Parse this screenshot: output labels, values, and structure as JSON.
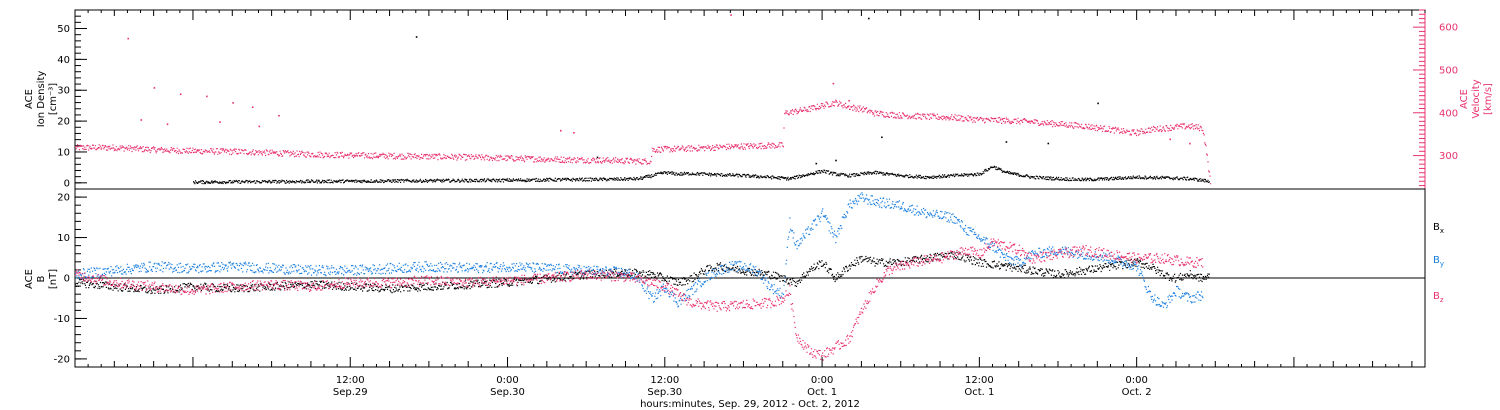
{
  "colors": {
    "black": "#000000",
    "pink": "#e8336d",
    "blue": "#1a7fe0"
  },
  "xaxis": {
    "range_hours": [
      -9,
      94
    ],
    "ticks": [
      {
        "hours": 12,
        "time": "12:00",
        "date": "Sep.29"
      },
      {
        "hours": 24,
        "time": "0:00",
        "date": "Sep.30"
      },
      {
        "hours": 36,
        "time": "12:00",
        "date": "Sep.30"
      },
      {
        "hours": 48,
        "time": "0:00",
        "date": "Oct. 1"
      },
      {
        "hours": 60,
        "time": "12:00",
        "date": "Oct. 1"
      },
      {
        "hours": 72,
        "time": "0:00",
        "date": "Oct. 2"
      }
    ],
    "label": "hours:minutes, Sep. 29, 2012 - Oct. 2, 2012"
  },
  "chart_data": [
    {
      "type": "scatter",
      "panel": "top",
      "ylabel_left": [
        "ACE",
        "Ion Density",
        "[cm⁻³]"
      ],
      "ylabel_right": [
        "ACE",
        "Velocity",
        "[km/s]"
      ],
      "ylim_left": [
        -2,
        56
      ],
      "ylim_right": [
        222,
        640
      ],
      "yticks_left": [
        0,
        10,
        20,
        30,
        40,
        50
      ],
      "yticks_right": [
        300,
        400,
        500,
        600
      ],
      "series": [
        {
          "axis": "left",
          "color": "black",
          "points": [
            [
              0,
              0.4
            ],
            [
              4,
              0.5
            ],
            [
              8,
              0.6
            ],
            [
              12,
              0.7
            ],
            [
              16,
              0.8
            ],
            [
              20,
              0.9
            ],
            [
              24,
              1.0
            ],
            [
              28,
              1.2
            ],
            [
              32,
              1.3
            ],
            [
              34,
              1.5
            ],
            [
              35,
              2.5
            ],
            [
              36,
              3.5
            ],
            [
              37,
              3.0
            ],
            [
              38,
              3.2
            ],
            [
              40,
              2.8
            ],
            [
              42,
              2.5
            ],
            [
              44,
              2.0
            ],
            [
              45.5,
              1.5
            ],
            [
              46,
              2.0
            ],
            [
              47,
              3.0
            ],
            [
              48,
              4.0
            ],
            [
              49,
              3.0
            ],
            [
              50,
              2.5
            ],
            [
              51,
              3.0
            ],
            [
              52,
              3.5
            ],
            [
              54,
              2.5
            ],
            [
              56,
              2.0
            ],
            [
              58,
              2.5
            ],
            [
              60,
              3.0
            ],
            [
              61,
              5.5
            ],
            [
              62,
              3.5
            ],
            [
              64,
              2.0
            ],
            [
              66,
              1.5
            ],
            [
              68,
              1.2
            ],
            [
              70,
              1.5
            ],
            [
              72,
              2.0
            ],
            [
              74,
              1.8
            ],
            [
              76,
              1.5
            ],
            [
              77,
              1.0
            ],
            [
              77.5,
              0.6
            ]
          ],
          "outliers": [
            [
              17,
              47.5
            ],
            [
              30.8,
              8.5
            ],
            [
              47.5,
              6.5
            ],
            [
              49,
              7.5
            ],
            [
              51.5,
              53.5
            ],
            [
              52.5,
              15
            ],
            [
              62,
              13.5
            ],
            [
              65.2,
              13
            ],
            [
              69,
              26
            ]
          ]
        },
        {
          "axis": "right",
          "color": "pink",
          "points": [
            [
              -9,
              320
            ],
            [
              -6,
              320
            ],
            [
              -3,
              315
            ],
            [
              0,
              312
            ],
            [
              4,
              310
            ],
            [
              8,
              305
            ],
            [
              12,
              302
            ],
            [
              16,
              300
            ],
            [
              20,
              298
            ],
            [
              24,
              295
            ],
            [
              28,
              292
            ],
            [
              32,
              290
            ],
            [
              34,
              288
            ],
            [
              34.9,
              288
            ],
            [
              35,
              315
            ],
            [
              38,
              318
            ],
            [
              41,
              322
            ],
            [
              44,
              325
            ],
            [
              45,
              325
            ],
            [
              45.1,
              400
            ],
            [
              46,
              405
            ],
            [
              47,
              410
            ],
            [
              48,
              418
            ],
            [
              49,
              425
            ],
            [
              50,
              415
            ],
            [
              51,
              410
            ],
            [
              52,
              400
            ],
            [
              54,
              395
            ],
            [
              56,
              392
            ],
            [
              58,
              390
            ],
            [
              60,
              385
            ],
            [
              62,
              383
            ],
            [
              64,
              380
            ],
            [
              66,
              375
            ],
            [
              68,
              370
            ],
            [
              70,
              362
            ],
            [
              71.5,
              355
            ],
            [
              72,
              355
            ],
            [
              73,
              362
            ],
            [
              74,
              365
            ],
            [
              75,
              368
            ],
            [
              76,
              370
            ],
            [
              77,
              365
            ],
            [
              77.3,
              310
            ],
            [
              77.6,
              235
            ]
          ],
          "outliers": [
            [
              -5,
              575
            ],
            [
              -3,
              460
            ],
            [
              -1,
              445
            ],
            [
              1,
              440
            ],
            [
              3,
              425
            ],
            [
              4.5,
              415
            ],
            [
              6.5,
              395
            ],
            [
              -4,
              385
            ],
            [
              -2,
              375
            ],
            [
              2,
              380
            ],
            [
              5,
              370
            ],
            [
              28,
              360
            ],
            [
              29,
              355
            ],
            [
              41,
              630
            ],
            [
              48.8,
              470
            ],
            [
              50,
              430
            ],
            [
              74.5,
              340
            ],
            [
              76,
              330
            ]
          ]
        }
      ]
    },
    {
      "type": "scatter",
      "panel": "bottom",
      "ylabel": [
        "ACE",
        "B",
        "[nT]"
      ],
      "ylim": [
        -22,
        22
      ],
      "yticks": [
        -20,
        -10,
        0,
        10,
        20
      ],
      "legend_position": "right",
      "series": [
        {
          "name": "Bx",
          "color": "black",
          "points": [
            [
              -9,
              -1
            ],
            [
              -6,
              -2
            ],
            [
              -3,
              -3
            ],
            [
              0,
              -2
            ],
            [
              3,
              -2.5
            ],
            [
              6,
              -2
            ],
            [
              9,
              -1.5
            ],
            [
              12,
              -2
            ],
            [
              15,
              -2.5
            ],
            [
              18,
              -2
            ],
            [
              21,
              -1.5
            ],
            [
              24,
              -1
            ],
            [
              27,
              0
            ],
            [
              30,
              1
            ],
            [
              33,
              1.5
            ],
            [
              35,
              1
            ],
            [
              36,
              0
            ],
            [
              37,
              -1
            ],
            [
              38,
              0
            ],
            [
              39,
              2
            ],
            [
              40,
              3
            ],
            [
              42,
              2
            ],
            [
              44,
              1
            ],
            [
              45,
              0
            ],
            [
              46,
              -1
            ],
            [
              47,
              2
            ],
            [
              48,
              4
            ],
            [
              49,
              0
            ],
            [
              50,
              3
            ],
            [
              51,
              5
            ],
            [
              52,
              4
            ],
            [
              54,
              4
            ],
            [
              56,
              5
            ],
            [
              58,
              6
            ],
            [
              59,
              5
            ],
            [
              60,
              4
            ],
            [
              62,
              3
            ],
            [
              64,
              2
            ],
            [
              66,
              1
            ],
            [
              68,
              2
            ],
            [
              70,
              3
            ],
            [
              72,
              4
            ],
            [
              73,
              3
            ],
            [
              74,
              1
            ],
            [
              75,
              0
            ],
            [
              76,
              1
            ],
            [
              77,
              0
            ],
            [
              77.5,
              0.5
            ]
          ]
        },
        {
          "name": "By",
          "color": "blue",
          "points": [
            [
              -9,
              1
            ],
            [
              -6,
              2
            ],
            [
              -3,
              3
            ],
            [
              0,
              2.5
            ],
            [
              3,
              3
            ],
            [
              6,
              2.5
            ],
            [
              9,
              2
            ],
            [
              12,
              2
            ],
            [
              15,
              2.5
            ],
            [
              18,
              3
            ],
            [
              21,
              2.5
            ],
            [
              24,
              3
            ],
            [
              27,
              2.5
            ],
            [
              30,
              2
            ],
            [
              33,
              1.5
            ],
            [
              34,
              0
            ],
            [
              35,
              -5
            ],
            [
              36,
              -2
            ],
            [
              37,
              -6
            ],
            [
              38,
              -3
            ],
            [
              39,
              0
            ],
            [
              40,
              2
            ],
            [
              41,
              3
            ],
            [
              42,
              3
            ],
            [
              43,
              2
            ],
            [
              44,
              -2
            ],
            [
              45,
              -4
            ],
            [
              45.5,
              14
            ],
            [
              46,
              8
            ],
            [
              47,
              12
            ],
            [
              48,
              16
            ],
            [
              49,
              10
            ],
            [
              50,
              18
            ],
            [
              51,
              20
            ],
            [
              52,
              19
            ],
            [
              54,
              18
            ],
            [
              56,
              16
            ],
            [
              58,
              15
            ],
            [
              59,
              12
            ],
            [
              60,
              10
            ],
            [
              61,
              8
            ],
            [
              62,
              5
            ],
            [
              63,
              4
            ],
            [
              64,
              6
            ],
            [
              66,
              7
            ],
            [
              68,
              6
            ],
            [
              70,
              5
            ],
            [
              72,
              3
            ],
            [
              73,
              -4
            ],
            [
              74,
              -7
            ],
            [
              75,
              -3
            ],
            [
              76,
              -5
            ],
            [
              77,
              -4
            ]
          ]
        },
        {
          "name": "Bz",
          "color": "pink",
          "points": [
            [
              -9,
              1
            ],
            [
              -6,
              -1
            ],
            [
              -3,
              -2
            ],
            [
              0,
              -3
            ],
            [
              3,
              -2
            ],
            [
              6,
              -1.5
            ],
            [
              9,
              -2
            ],
            [
              12,
              -1
            ],
            [
              15,
              -1
            ],
            [
              18,
              -0.5
            ],
            [
              21,
              -1
            ],
            [
              24,
              -0.5
            ],
            [
              27,
              0
            ],
            [
              30,
              1
            ],
            [
              33,
              0.5
            ],
            [
              35,
              -1
            ],
            [
              36,
              -2
            ],
            [
              37,
              -4
            ],
            [
              38,
              -6
            ],
            [
              40,
              -7
            ],
            [
              42,
              -6.5
            ],
            [
              44,
              -6
            ],
            [
              45,
              -5
            ],
            [
              45.5,
              -3
            ],
            [
              46,
              -14
            ],
            [
              47,
              -18
            ],
            [
              48,
              -19
            ],
            [
              49,
              -17
            ],
            [
              50,
              -15
            ],
            [
              51,
              -8
            ],
            [
              52,
              -2
            ],
            [
              53,
              2
            ],
            [
              55,
              4
            ],
            [
              57,
              5
            ],
            [
              58,
              6
            ],
            [
              59,
              7
            ],
            [
              60,
              6
            ],
            [
              61,
              9
            ],
            [
              62,
              8
            ],
            [
              63,
              7
            ],
            [
              64,
              5
            ],
            [
              66,
              6
            ],
            [
              68,
              7
            ],
            [
              70,
              6
            ],
            [
              72,
              5
            ],
            [
              74,
              5
            ],
            [
              76,
              4
            ],
            [
              77,
              4
            ]
          ]
        }
      ]
    }
  ]
}
